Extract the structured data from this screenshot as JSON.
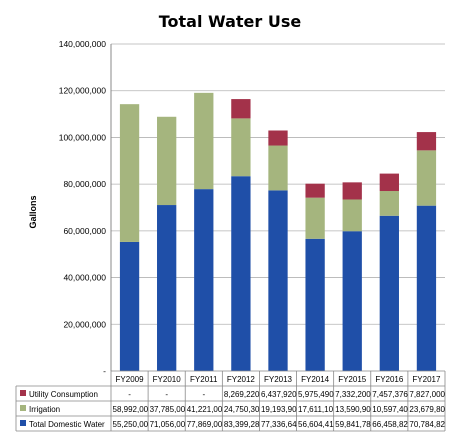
{
  "chart_data": {
    "type": "bar",
    "stacked": true,
    "title": "Total Water Use",
    "xlabel": "",
    "ylabel": "Gallons",
    "ylim": [
      0,
      140000000
    ],
    "yticks": [
      "-",
      "20,000,000",
      "40,000,000",
      "60,000,000",
      "80,000,000",
      "100,000,000",
      "120,000,000",
      "140,000,000"
    ],
    "grid": true,
    "legend": "data-table-below",
    "categories": [
      "FY2009",
      "FY2010",
      "FY2011",
      "FY2012",
      "FY2013",
      "FY2014",
      "FY2015",
      "FY2016",
      "FY2017"
    ],
    "series": [
      {
        "name": "Total Domestic Water",
        "color": "#1f4fa8",
        "values": [
          55250000,
          71056000,
          77869000,
          83399280,
          77336640,
          56604410,
          59841780,
          66458820,
          70784820
        ],
        "labels": [
          "55,250,00",
          "71,056,00",
          "77,869,00",
          "83,399,28",
          "77,336,64",
          "56,604,41",
          "59,841,78",
          "66,458,82",
          "70,784,82"
        ]
      },
      {
        "name": "Irrigation",
        "color": "#a5b57e",
        "values": [
          58992000,
          37785000,
          41221000,
          24750300,
          19193900,
          17611100,
          13590900,
          10597400,
          23679800
        ],
        "labels": [
          "58,992,00",
          "37,785,00",
          "41,221,00",
          "24,750,30",
          "19,193,90",
          "17,611,10",
          "13,590,90",
          "10,597,40",
          "23,679,80"
        ]
      },
      {
        "name": "Utility Consumption",
        "color": "#a3324a",
        "values": [
          0,
          0,
          0,
          8269220,
          6437920,
          5975490,
          7332200,
          7457376,
          7827000
        ],
        "labels": [
          "-",
          "-",
          "-",
          "8,269,220",
          "6,437,920",
          "5,975,490",
          "7,332,200",
          "7,457,376",
          "7,827,000"
        ]
      }
    ]
  }
}
